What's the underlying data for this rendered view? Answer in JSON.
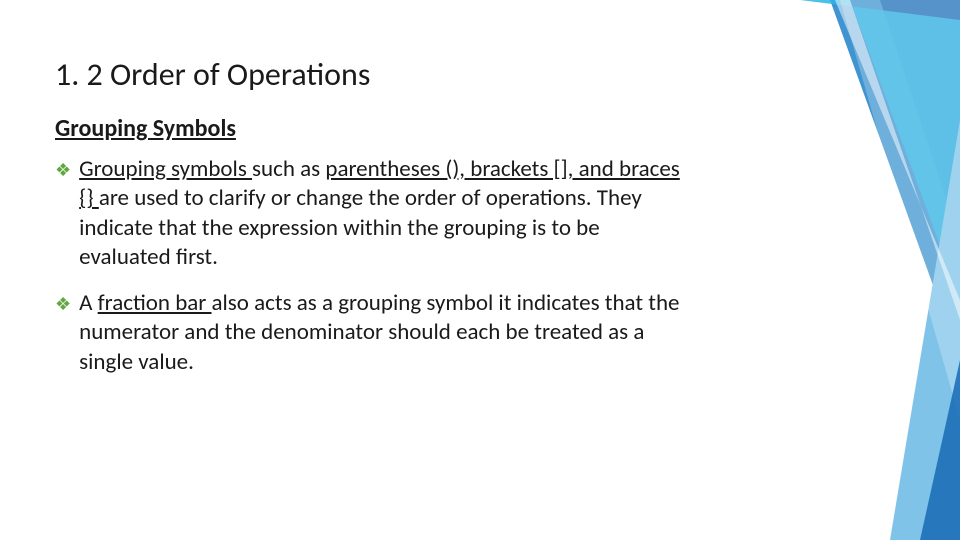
{
  "slide": {
    "title": "1. 2 Order of Operations",
    "subheading": "Grouping Symbols",
    "bullets": [
      {
        "runs": [
          {
            "text": "Grouping symbols ",
            "underline": true
          },
          {
            "text": "such as ",
            "underline": false
          },
          {
            "text": "parentheses (), brackets [], and braces {} ",
            "underline": true
          },
          {
            "text": "are used to clarify or change the order of operations. They indicate that the expression within the grouping is to be evaluated first.",
            "underline": false
          }
        ]
      },
      {
        "runs": [
          {
            "text": "A ",
            "underline": false
          },
          {
            "text": "fraction bar ",
            "underline": true
          },
          {
            "text": "also acts as a grouping symbol it indicates that the numerator and the denominator should each be treated as a single value.",
            "underline": false
          }
        ]
      }
    ],
    "bullet_glyph": "❖"
  },
  "style": {
    "title_fontsize": 32,
    "subheading_fontsize": 24,
    "body_fontsize": 23,
    "bullet_color": "#5fa83f",
    "text_color": "#1a1a1a",
    "background_color": "#ffffff",
    "deco_colors": {
      "blue_dark": "#1e6fb8",
      "blue_mid": "#3f94d1",
      "blue_light": "#7fc3e8",
      "cyan": "#2bb6e5",
      "white_overlay": "#ffffffcc"
    }
  }
}
